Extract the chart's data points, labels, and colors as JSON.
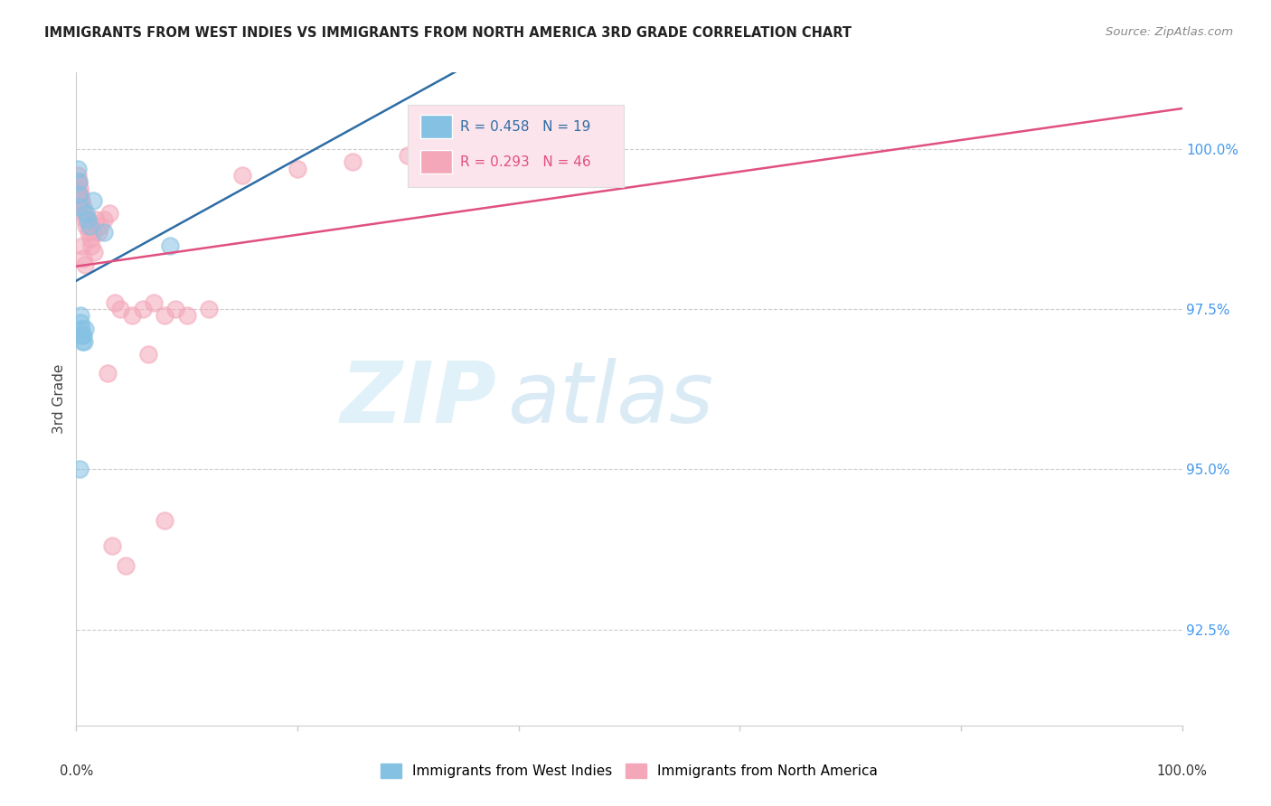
{
  "title": "IMMIGRANTS FROM WEST INDIES VS IMMIGRANTS FROM NORTH AMERICA 3RD GRADE CORRELATION CHART",
  "source": "Source: ZipAtlas.com",
  "ylabel": "3rd Grade",
  "ytick_values": [
    92.5,
    95.0,
    97.5,
    100.0
  ],
  "xlim": [
    0,
    100
  ],
  "ylim": [
    91.0,
    101.2
  ],
  "legend_label_blue": "Immigrants from West Indies",
  "legend_label_pink": "Immigrants from North America",
  "R_blue": 0.458,
  "N_blue": 19,
  "R_pink": 0.293,
  "N_pink": 46,
  "blue_color": "#85c1e3",
  "pink_color": "#f4a7b9",
  "blue_line_color": "#2e6da4",
  "pink_line_color": "#e05080",
  "blue_scatter_x": [
    0.15,
    0.2,
    0.25,
    0.3,
    0.35,
    0.4,
    0.45,
    0.5,
    0.55,
    0.6,
    0.7,
    0.8,
    0.9,
    1.0,
    1.2,
    1.5,
    2.5,
    8.5,
    0.3
  ],
  "blue_scatter_y": [
    99.7,
    99.5,
    99.3,
    99.1,
    97.4,
    97.3,
    97.2,
    97.1,
    97.0,
    97.1,
    97.0,
    97.2,
    99.0,
    98.9,
    98.8,
    99.2,
    98.7,
    98.5,
    95.0
  ],
  "pink_scatter_x": [
    0.1,
    0.2,
    0.3,
    0.4,
    0.5,
    0.6,
    0.7,
    0.8,
    0.9,
    1.0,
    1.1,
    1.2,
    1.3,
    1.5,
    1.8,
    2.0,
    2.2,
    2.5,
    3.0,
    3.5,
    4.0,
    5.0,
    6.0,
    7.0,
    8.0,
    9.0,
    10.0,
    12.0,
    15.0,
    20.0,
    25.0,
    30.0,
    35.0,
    0.15,
    0.25,
    0.35,
    0.55,
    0.65,
    0.75,
    1.4,
    1.6,
    2.8,
    3.2,
    4.5,
    6.5,
    8.0
  ],
  "pink_scatter_y": [
    99.6,
    99.5,
    99.4,
    99.3,
    99.2,
    99.1,
    99.0,
    98.9,
    98.8,
    98.9,
    98.7,
    98.8,
    98.6,
    98.7,
    98.9,
    98.7,
    98.8,
    98.9,
    99.0,
    97.6,
    97.5,
    97.4,
    97.5,
    97.6,
    97.4,
    97.5,
    97.4,
    97.5,
    99.6,
    99.7,
    99.8,
    99.9,
    100.0,
    99.5,
    99.3,
    99.2,
    98.5,
    98.3,
    98.2,
    98.5,
    98.4,
    96.5,
    93.8,
    93.5,
    96.8,
    94.2
  ]
}
